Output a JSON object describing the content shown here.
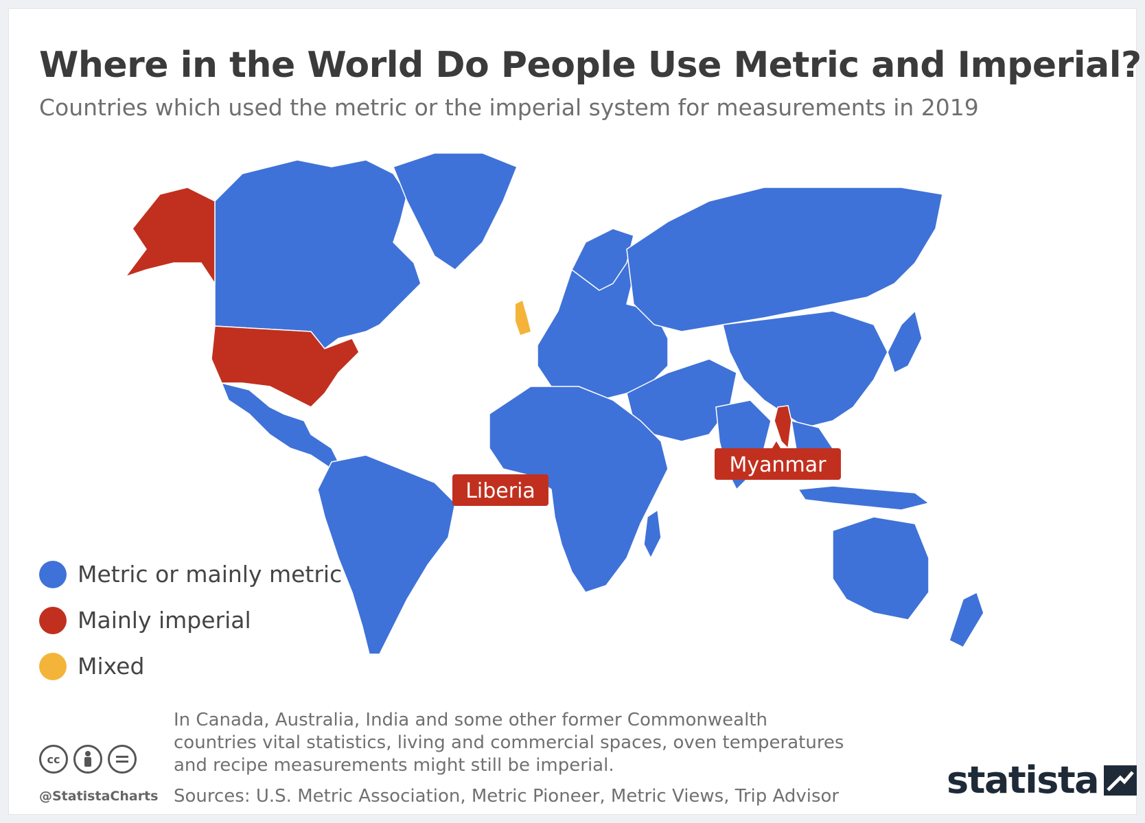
{
  "header": {
    "title": "Where in the World Do People Use Metric and Imperial?",
    "subtitle": "Countries which used the metric or the imperial system for measurements in 2019"
  },
  "map": {
    "callouts": [
      "Liberia",
      "Myanmar"
    ],
    "colors": {
      "metric": "#3f72d8",
      "imperial": "#c1301f",
      "mixed": "#f4b43a",
      "border": "#ffffff"
    }
  },
  "legend": {
    "items": [
      {
        "label": "Metric or mainly metric",
        "color": "#3f72d8"
      },
      {
        "label": "Mainly imperial",
        "color": "#c1301f"
      },
      {
        "label": "Mixed",
        "color": "#f4b43a"
      }
    ]
  },
  "footer": {
    "note": "In Canada, Australia, India and some other former Commonwealth countries vital statistics, living and commercial spaces, oven temperatures and recipe measurements might still be imperial.",
    "sources": "Sources: U.S. Metric Association, Metric Pioneer, Metric Views, Trip Advisor",
    "handle": "@StatistaCharts",
    "brand": "statista",
    "cc_icons": [
      "cc-icon",
      "attribution-icon",
      "no-derivatives-icon"
    ]
  }
}
